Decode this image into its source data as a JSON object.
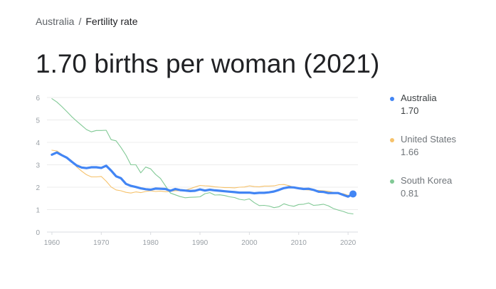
{
  "breadcrumb": {
    "parent": "Australia",
    "separator": "/",
    "current": "Fertility rate"
  },
  "headline": "1.70 births per woman (2021)",
  "colors": {
    "australia": "#4285f4",
    "united_states": "#f6c26b",
    "south_korea": "#81c995",
    "grid": "#ececec",
    "axis_text": "#9aa0a6"
  },
  "legend": [
    {
      "name": "Australia",
      "value": "1.70",
      "color": "#4285f4",
      "active": true
    },
    {
      "name": "United States",
      "value": "1.66",
      "color": "#f6c26b",
      "active": false
    },
    {
      "name": "South Korea",
      "value": "0.81",
      "color": "#81c995",
      "active": false
    }
  ],
  "chart_data": {
    "type": "line",
    "title": "",
    "xlabel": "",
    "ylabel": "",
    "xlim": [
      1959,
      2022
    ],
    "ylim": [
      0,
      6
    ],
    "x_ticks": [
      1960,
      1970,
      1980,
      1990,
      2000,
      2010,
      2020
    ],
    "y_ticks": [
      0,
      1,
      2,
      3,
      4,
      5,
      6
    ],
    "grid": true,
    "legend_position": "right",
    "x": [
      1960,
      1961,
      1962,
      1963,
      1964,
      1965,
      1966,
      1967,
      1968,
      1969,
      1970,
      1971,
      1972,
      1973,
      1974,
      1975,
      1976,
      1977,
      1978,
      1979,
      1980,
      1981,
      1982,
      1983,
      1984,
      1985,
      1986,
      1987,
      1988,
      1989,
      1990,
      1991,
      1992,
      1993,
      1994,
      1995,
      1996,
      1997,
      1998,
      1999,
      2000,
      2001,
      2002,
      2003,
      2004,
      2005,
      2006,
      2007,
      2008,
      2009,
      2010,
      2011,
      2012,
      2013,
      2014,
      2015,
      2016,
      2017,
      2018,
      2019,
      2020,
      2021
    ],
    "series": [
      {
        "name": "Australia",
        "color": "#4285f4",
        "highlight": true,
        "values": [
          3.45,
          3.55,
          3.43,
          3.32,
          3.14,
          2.97,
          2.88,
          2.85,
          2.89,
          2.89,
          2.86,
          2.96,
          2.74,
          2.49,
          2.4,
          2.15,
          2.06,
          2.01,
          1.95,
          1.91,
          1.89,
          1.94,
          1.93,
          1.92,
          1.84,
          1.92,
          1.87,
          1.85,
          1.83,
          1.84,
          1.9,
          1.85,
          1.89,
          1.86,
          1.84,
          1.82,
          1.8,
          1.78,
          1.76,
          1.76,
          1.76,
          1.73,
          1.75,
          1.75,
          1.77,
          1.81,
          1.88,
          1.96,
          2.0,
          1.99,
          1.95,
          1.92,
          1.93,
          1.88,
          1.8,
          1.79,
          1.74,
          1.74,
          1.74,
          1.66,
          1.58,
          1.7
        ]
      },
      {
        "name": "United States",
        "color": "#f6c26b",
        "highlight": false,
        "values": [
          3.65,
          3.62,
          3.46,
          3.32,
          3.19,
          2.91,
          2.72,
          2.56,
          2.46,
          2.46,
          2.48,
          2.27,
          2.01,
          1.88,
          1.84,
          1.77,
          1.74,
          1.79,
          1.76,
          1.81,
          1.84,
          1.81,
          1.83,
          1.8,
          1.81,
          1.84,
          1.84,
          1.87,
          1.93,
          2.01,
          2.08,
          2.06,
          2.05,
          2.02,
          2.0,
          1.98,
          1.98,
          1.97,
          2.0,
          2.01,
          2.06,
          2.03,
          2.02,
          2.05,
          2.05,
          2.06,
          2.11,
          2.12,
          2.07,
          2.0,
          1.93,
          1.89,
          1.88,
          1.86,
          1.86,
          1.84,
          1.82,
          1.77,
          1.73,
          1.71,
          1.64,
          1.66
        ]
      },
      {
        "name": "South Korea",
        "color": "#81c995",
        "highlight": false,
        "values": [
          5.95,
          5.8,
          5.6,
          5.38,
          5.15,
          4.95,
          4.76,
          4.57,
          4.47,
          4.53,
          4.53,
          4.54,
          4.12,
          4.07,
          3.77,
          3.43,
          3.0,
          3.0,
          2.64,
          2.9,
          2.82,
          2.57,
          2.39,
          2.06,
          1.74,
          1.66,
          1.58,
          1.53,
          1.55,
          1.56,
          1.57,
          1.71,
          1.76,
          1.65,
          1.66,
          1.63,
          1.57,
          1.54,
          1.46,
          1.43,
          1.48,
          1.31,
          1.18,
          1.19,
          1.16,
          1.09,
          1.13,
          1.26,
          1.19,
          1.15,
          1.23,
          1.24,
          1.3,
          1.19,
          1.21,
          1.24,
          1.17,
          1.05,
          0.98,
          0.92,
          0.84,
          0.81
        ]
      }
    ]
  }
}
